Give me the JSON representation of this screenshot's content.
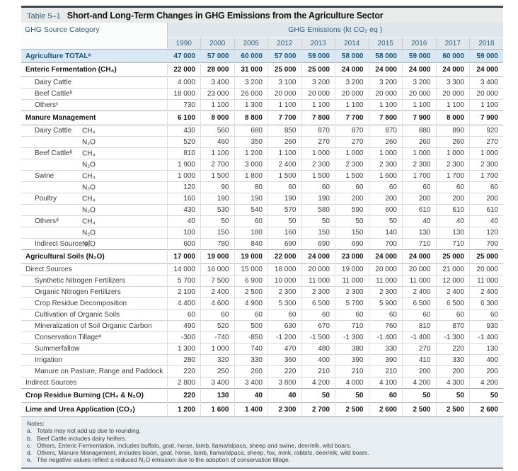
{
  "colors": {
    "top_border": "#3c484c",
    "title_bar_bg": "#e9eaea",
    "accent_text": "#33617c",
    "header_bg": "#dfe7ed",
    "total_row_bg": "#d9e8f3",
    "total_row_text": "#17567f",
    "notes_bg": "#e8eef1"
  },
  "table": {
    "label": "Table 5–1",
    "title": "Short-and Long-Term Changes in GHG Emissions from the Agriculture Sector",
    "col1_header": "GHG Source Category",
    "emissions_header": "GHG Emissions (kt CO₂ eq )",
    "years": [
      "1990",
      "2000",
      "2005",
      "2012",
      "2013",
      "2014",
      "2015",
      "2016",
      "2017",
      "2018"
    ],
    "rows": [
      {
        "style": "total",
        "name": "Agriculture TOTALᵃ",
        "values": [
          "47 000",
          "57 000",
          "60 000",
          "57 000",
          "59 000",
          "58 000",
          "58 000",
          "59 000",
          "60 000",
          "59 000"
        ]
      },
      {
        "style": "section",
        "name": "Enteric Fermentation (CH₄)",
        "values": [
          "22 000",
          "28 000",
          "31 000",
          "25 000",
          "25 000",
          "24 000",
          "24 000",
          "24 000",
          "24 000",
          "24 000"
        ]
      },
      {
        "style": "sub",
        "name": "Dairy Cattle",
        "values": [
          "4 000",
          "3 400",
          "3 200",
          "3 100",
          "3 200",
          "3 200",
          "3 200",
          "3 200",
          "3 300",
          "3 400"
        ]
      },
      {
        "style": "sub",
        "name": "Beef Cattleᵇ",
        "values": [
          "18 000",
          "23 000",
          "26 000",
          "20 000",
          "20 000",
          "20 000",
          "20 000",
          "20 000",
          "20 000",
          "20 000"
        ]
      },
      {
        "style": "sub",
        "name": "Othersᶜ",
        "values": [
          "730",
          "1 100",
          "1 300",
          "1 100",
          "1 100",
          "1 100",
          "1 100",
          "1 100",
          "1 100",
          "1 100"
        ]
      },
      {
        "style": "section",
        "name": "Manure Management",
        "values": [
          "6 100",
          "8 000",
          "8 800",
          "7 700",
          "7 800",
          "7 700",
          "7 800",
          "7 900",
          "8 000",
          "7 900"
        ]
      },
      {
        "style": "gas",
        "name": "Dairy Cattle",
        "gas": "CH₄",
        "values": [
          "430",
          "560",
          "680",
          "850",
          "870",
          "870",
          "870",
          "880",
          "890",
          "920"
        ]
      },
      {
        "style": "gas",
        "name": "",
        "gas": "N₂O",
        "values": [
          "520",
          "460",
          "350",
          "260",
          "270",
          "270",
          "260",
          "260",
          "260",
          "270"
        ]
      },
      {
        "style": "gas",
        "name": "Beef Cattleᵇ",
        "gas": "CH₄",
        "values": [
          "810",
          "1 100",
          "1 200",
          "1 100",
          "1 000",
          "1 000",
          "1 000",
          "1 000",
          "1 000",
          "1 000"
        ]
      },
      {
        "style": "gas",
        "name": "",
        "gas": "N₂O",
        "values": [
          "1 900",
          "2 700",
          "3 000",
          "2 400",
          "2 300",
          "2 300",
          "2 300",
          "2 300",
          "2 300",
          "2 300"
        ]
      },
      {
        "style": "gas",
        "name": "Swine",
        "gas": "CH₄",
        "values": [
          "1 000",
          "1 500",
          "1 800",
          "1 500",
          "1 500",
          "1 500",
          "1 600",
          "1 700",
          "1 700",
          "1 700"
        ]
      },
      {
        "style": "gas",
        "name": "",
        "gas": "N₂O",
        "values": [
          "120",
          "90",
          "80",
          "60",
          "60",
          "60",
          "60",
          "60",
          "60",
          "60"
        ]
      },
      {
        "style": "gas",
        "name": "Poultry",
        "gas": "CH₄",
        "values": [
          "160",
          "190",
          "190",
          "190",
          "190",
          "200",
          "200",
          "200",
          "200",
          "200"
        ]
      },
      {
        "style": "gas",
        "name": "",
        "gas": "N₂O",
        "values": [
          "430",
          "530",
          "540",
          "570",
          "580",
          "590",
          "600",
          "610",
          "610",
          "610"
        ]
      },
      {
        "style": "gas",
        "name": "Othersᵈ",
        "gas": "CH₄",
        "values": [
          "40",
          "50",
          "60",
          "50",
          "50",
          "50",
          "50",
          "40",
          "40",
          "40"
        ]
      },
      {
        "style": "gas",
        "name": "",
        "gas": "N₂O",
        "values": [
          "100",
          "150",
          "180",
          "160",
          "150",
          "150",
          "140",
          "130",
          "130",
          "120"
        ]
      },
      {
        "style": "gas",
        "name": "Indirect Source of",
        "gas": "N₂O",
        "values": [
          "600",
          "780",
          "840",
          "690",
          "690",
          "690",
          "700",
          "710",
          "710",
          "700"
        ]
      },
      {
        "style": "section",
        "name": "Agricultural Soils (N₂O)",
        "values": [
          "17 000",
          "19 000",
          "19 000",
          "22 000",
          "24 000",
          "23 000",
          "24 000",
          "24 000",
          "25 000",
          "25 000"
        ]
      },
      {
        "style": "plain",
        "name": "Direct Sources",
        "values": [
          "14 000",
          "16 000",
          "15 000",
          "18 000",
          "20 000",
          "19 000",
          "20 000",
          "20 000",
          "21 000",
          "20 000"
        ]
      },
      {
        "style": "sub",
        "name": "Synthetic Nitrogen Fertilizers",
        "values": [
          "5 700",
          "7 500",
          "6 900",
          "10 000",
          "11 000",
          "11 000",
          "11 000",
          "11 000",
          "12 000",
          "11 000"
        ]
      },
      {
        "style": "sub",
        "name": "Organic Nitrogen Fertilizers",
        "values": [
          "2 100",
          "2 400",
          "2 500",
          "2 300",
          "2 300",
          "2 300",
          "2 300",
          "2 400",
          "2 400",
          "2 400"
        ]
      },
      {
        "style": "sub",
        "name": "Crop Residue Decomposition",
        "values": [
          "4 400",
          "4 600",
          "4 900",
          "5 300",
          "6 500",
          "5 700",
          "5 900",
          "6 500",
          "6 500",
          "6 300"
        ]
      },
      {
        "style": "sub",
        "name": "Cultivation of Organic Soils",
        "values": [
          "60",
          "60",
          "60",
          "60",
          "60",
          "60",
          "60",
          "60",
          "60",
          "60"
        ]
      },
      {
        "style": "sub",
        "name": "Mineralization of Soil Organic Carbon",
        "values": [
          "490",
          "520",
          "500",
          "630",
          "670",
          "710",
          "760",
          "810",
          "870",
          "930"
        ]
      },
      {
        "style": "sub",
        "name": "Conservation Tillageᵉ",
        "values": [
          "-300",
          "-740",
          "-850",
          "-1 200",
          "-1 500",
          "-1 300",
          "-1 400",
          "-1 400",
          "-1 300",
          "-1 400"
        ]
      },
      {
        "style": "sub",
        "name": "Summerfallow",
        "values": [
          "1 300",
          "1 000",
          "740",
          "470",
          "480",
          "380",
          "330",
          "270",
          "220",
          "130"
        ]
      },
      {
        "style": "sub",
        "name": "Irrigation",
        "values": [
          "280",
          "320",
          "330",
          "360",
          "400",
          "390",
          "390",
          "410",
          "330",
          "400"
        ]
      },
      {
        "style": "sub",
        "name": "Manure on Pasture, Range and Paddock",
        "values": [
          "220",
          "250",
          "260",
          "220",
          "210",
          "210",
          "210",
          "200",
          "200",
          "200"
        ]
      },
      {
        "style": "plain",
        "name": "Indirect Sources",
        "values": [
          "2 800",
          "3 400",
          "3 400",
          "3 800",
          "4 200",
          "4 000",
          "4 100",
          "4 200",
          "4 300",
          "4 200"
        ]
      },
      {
        "style": "section",
        "name": "Crop Residue Burning (CH₄ & N₂O)",
        "values": [
          "220",
          "130",
          "40",
          "40",
          "50",
          "50",
          "60",
          "50",
          "50",
          "50"
        ]
      },
      {
        "style": "section",
        "name": "Lime and Urea Application (CO₂)",
        "values": [
          "1 200",
          "1 600",
          "1 400",
          "2 300",
          "2 700",
          "2 500",
          "2 600",
          "2 500",
          "2 500",
          "2 600"
        ]
      }
    ]
  },
  "notes": {
    "label": "Notes:",
    "items": [
      {
        "id": "a.",
        "text": "Totals may not add up due to rounding."
      },
      {
        "id": "b.",
        "text": "Beef Cattle includes dairy heifers."
      },
      {
        "id": "c.",
        "text": "Others, Enteric Fermentation, includes buffalo, goat, horse, lamb, llama/alpaca, sheep and swine, deer/elk, wild boars."
      },
      {
        "id": "d.",
        "text": "Others, Manure Management, includes bison, goat, horse, lamb, llama/alpaca, sheep, fox, mink, rabbits, deer/elk, wild boars."
      },
      {
        "id": "e.",
        "text": "The negative values reflect a reduced N₂O emission due to the adoption of conservation tillage."
      }
    ]
  }
}
